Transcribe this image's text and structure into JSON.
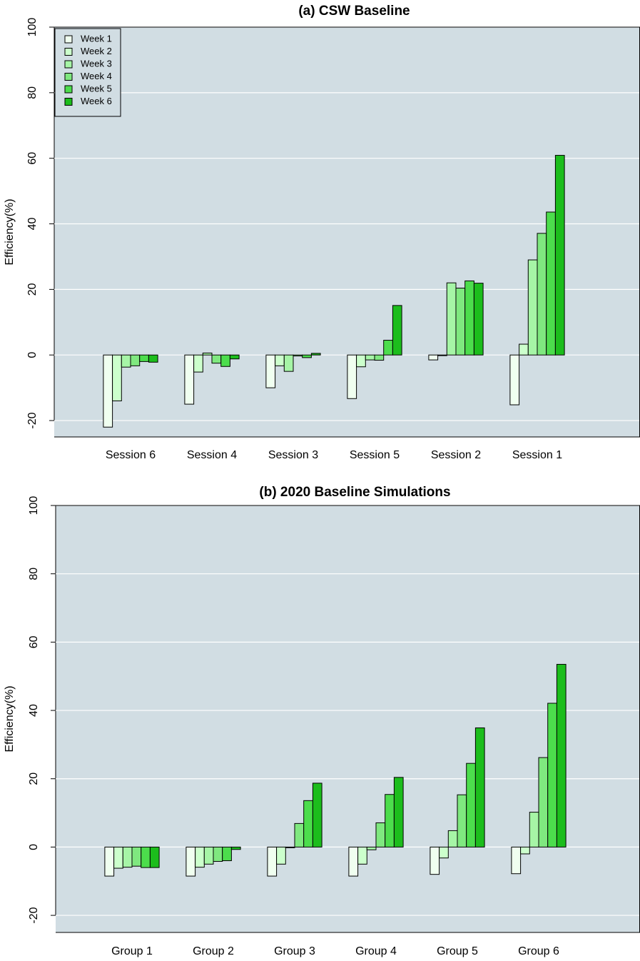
{
  "chart_data": [
    {
      "type": "bar",
      "title": "(a) CSW Baseline",
      "y_label": "Efficiency(%)",
      "categories": [
        "Session 6",
        "Session 4",
        "Session 3",
        "Session 5",
        "Session 2",
        "Session 1"
      ],
      "series": [
        {
          "name": "Week 1",
          "color": "#f0fff0",
          "values": [
            -22,
            -15,
            -10,
            -13.3,
            -1.5,
            -15.2
          ]
        },
        {
          "name": "Week 2",
          "color": "#ccffcc",
          "values": [
            -14,
            -5.2,
            -3.3,
            -3.6,
            -0.2,
            3.3
          ]
        },
        {
          "name": "Week 3",
          "color": "#a6f5a6",
          "values": [
            -3.7,
            0.6,
            -5,
            -1.5,
            22,
            29
          ]
        },
        {
          "name": "Week 4",
          "color": "#7fe87f",
          "values": [
            -3.3,
            -2.5,
            -0.3,
            -1.6,
            20.4,
            37.1
          ]
        },
        {
          "name": "Week 5",
          "color": "#4cdd4c",
          "values": [
            -2,
            -3.5,
            -0.8,
            4.5,
            22.6,
            43.6
          ]
        },
        {
          "name": "Week 6",
          "color": "#1cbd1c",
          "values": [
            -2.2,
            -1.2,
            0.5,
            15.1,
            21.9,
            60.9
          ]
        }
      ],
      "ylim": [
        -25,
        100
      ],
      "yticks": [
        -20,
        0,
        20,
        40,
        60,
        80,
        100
      ],
      "grid": true,
      "legend": "top-left"
    },
    {
      "type": "bar",
      "title": "(b) 2020 Baseline Simulations",
      "y_label": "Efficiency(%)",
      "categories": [
        "Group 1",
        "Group 2",
        "Group 3",
        "Group 4",
        "Group 5",
        "Group 6"
      ],
      "series": [
        {
          "color": "#f0fff0",
          "values": [
            -8.5,
            -8.5,
            -8.5,
            -8.5,
            -8,
            -7.8
          ]
        },
        {
          "color": "#ccffcc",
          "values": [
            -6.2,
            -5.9,
            -5,
            -5,
            -3.2,
            -2
          ]
        },
        {
          "color": "#a6f5a6",
          "values": [
            -5.9,
            -5,
            -0.2,
            -0.8,
            4.8,
            10.2
          ]
        },
        {
          "color": "#7fe87f",
          "values": [
            -5.6,
            -4.2,
            6.9,
            7.1,
            15.3,
            26.2
          ]
        },
        {
          "color": "#4cdd4c",
          "values": [
            -6,
            -4,
            13.6,
            15.4,
            24.5,
            42.1
          ]
        },
        {
          "color": "#1cbd1c",
          "values": [
            -6,
            -0.7,
            18.7,
            20.4,
            34.9,
            53.5
          ]
        }
      ],
      "ylim": [
        -25,
        100
      ],
      "yticks": [
        -20,
        0,
        20,
        40,
        60,
        80,
        100
      ],
      "grid": true
    }
  ]
}
